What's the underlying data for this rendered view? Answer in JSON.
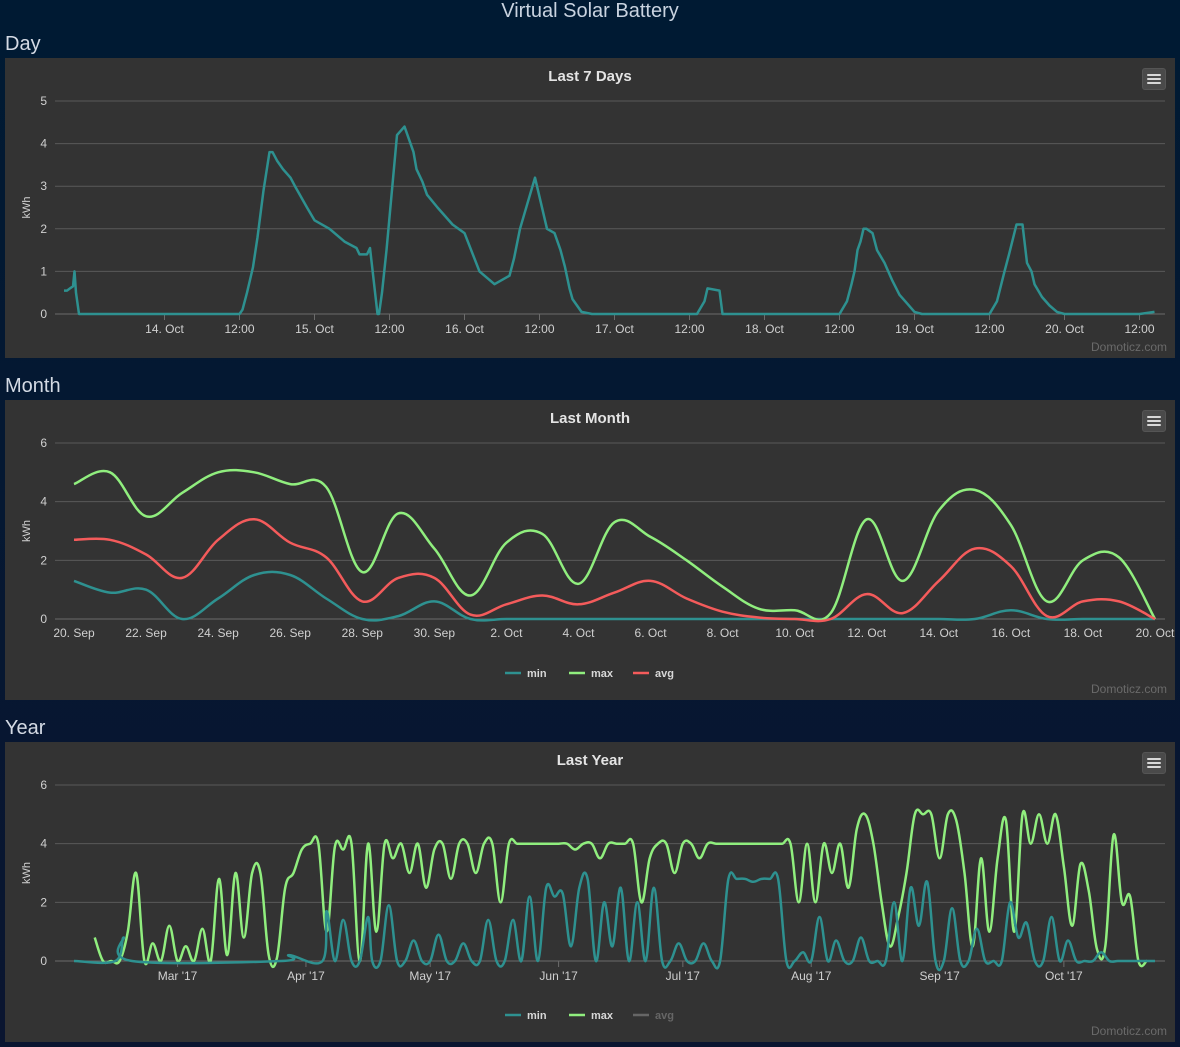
{
  "page_title": "Virtual Solar Battery",
  "sections": {
    "day": "Day",
    "month": "Month",
    "year": "Year"
  },
  "credits": "Domoticz.com",
  "colors": {
    "min": "#2e9190",
    "max": "#90ee7e",
    "avg": "#f45b5b",
    "avg_inactive": "#666666"
  },
  "icons": {
    "menu": "hamburger-menu-icon"
  },
  "chart_data": [
    {
      "type": "line",
      "title": "Last 7 Days",
      "ylabel": "kWh",
      "ylim": [
        0,
        5
      ],
      "yticks": [
        0,
        1,
        2,
        3,
        4,
        5
      ],
      "xlim_days": [
        13.27,
        20.67
      ],
      "xticks": [
        {
          "x": 14.0,
          "label": "14. Oct"
        },
        {
          "x": 14.5,
          "label": "12:00"
        },
        {
          "x": 15.0,
          "label": "15. Oct"
        },
        {
          "x": 15.5,
          "label": "12:00"
        },
        {
          "x": 16.0,
          "label": "16. Oct"
        },
        {
          "x": 16.5,
          "label": "12:00"
        },
        {
          "x": 17.0,
          "label": "17. Oct"
        },
        {
          "x": 17.5,
          "label": "12:00"
        },
        {
          "x": 18.0,
          "label": "18. Oct"
        },
        {
          "x": 18.5,
          "label": "12:00"
        },
        {
          "x": 19.0,
          "label": "19. Oct"
        },
        {
          "x": 19.5,
          "label": "12:00"
        },
        {
          "x": 20.0,
          "label": "20. Oct"
        },
        {
          "x": 20.5,
          "label": "12:00"
        }
      ],
      "grid": true,
      "legend": "none",
      "series": [
        {
          "key": "min",
          "x": [
            13.33,
            13.35,
            13.37,
            13.39,
            13.4,
            13.41,
            13.43,
            14.0,
            14.5,
            14.52,
            14.55,
            14.59,
            14.62,
            14.66,
            14.7,
            14.72,
            14.75,
            14.79,
            14.84,
            14.87,
            14.95,
            15.0,
            15.1,
            15.2,
            15.28,
            15.3,
            15.35,
            15.37,
            15.42,
            15.43,
            15.45,
            15.48,
            15.55,
            15.6,
            15.63,
            15.66,
            15.68,
            15.72,
            15.75,
            15.82,
            15.87,
            15.92,
            16.0,
            16.1,
            16.2,
            16.3,
            16.33,
            16.37,
            16.42,
            16.47,
            16.55,
            16.6,
            16.64,
            16.67,
            16.7,
            16.72,
            16.75,
            16.78,
            16.85,
            16.92,
            17.0,
            17.5,
            17.55,
            17.6,
            17.62,
            17.7,
            17.72,
            18.0,
            18.5,
            18.55,
            18.58,
            18.6,
            18.62,
            18.64,
            18.66,
            18.68,
            18.72,
            18.75,
            18.8,
            18.85,
            18.9,
            18.95,
            19.0,
            19.05,
            19.1,
            19.5,
            19.55,
            19.6,
            19.63,
            19.68,
            19.72,
            19.75,
            19.78,
            19.8,
            19.85,
            19.9,
            19.95,
            20.0,
            20.5,
            20.6
          ],
          "y": [
            0.55,
            0.55,
            0.6,
            0.65,
            1.0,
            0.5,
            0.0,
            0.0,
            0.0,
            0.1,
            0.5,
            1.1,
            1.8,
            2.9,
            3.8,
            3.8,
            3.6,
            3.4,
            3.2,
            3.0,
            2.5,
            2.2,
            2.0,
            1.7,
            1.55,
            1.4,
            1.4,
            1.55,
            0.0,
            0.0,
            0.5,
            1.5,
            4.2,
            4.4,
            4.1,
            3.8,
            3.4,
            3.1,
            2.8,
            2.5,
            2.3,
            2.1,
            1.9,
            1.0,
            0.7,
            0.9,
            1.3,
            2.0,
            2.6,
            3.2,
            2.0,
            1.9,
            1.5,
            1.1,
            0.6,
            0.35,
            0.2,
            0.05,
            0.0,
            0.0,
            0.0,
            0.0,
            0.0,
            0.3,
            0.6,
            0.55,
            0.0,
            0.0,
            0.0,
            0.3,
            0.7,
            1.0,
            1.5,
            1.7,
            2.0,
            2.0,
            1.9,
            1.5,
            1.2,
            0.8,
            0.45,
            0.25,
            0.05,
            0.0,
            0.0,
            0.0,
            0.3,
            1.0,
            1.4,
            2.1,
            2.1,
            1.2,
            1.0,
            0.7,
            0.4,
            0.2,
            0.05,
            0.0,
            0.0,
            0.05
          ]
        }
      ]
    },
    {
      "type": "line",
      "title": "Last Month",
      "ylabel": "kWh",
      "ylim": [
        0,
        6
      ],
      "yticks": [
        0,
        2,
        4,
        6
      ],
      "categories": [
        "20. Sep",
        "21. Sep",
        "22. Sep",
        "23. Sep",
        "24. Sep",
        "25. Sep",
        "26. Sep",
        "27. Sep",
        "28. Sep",
        "29. Sep",
        "30. Sep",
        "1. Oct",
        "2. Oct",
        "3. Oct",
        "4. Oct",
        "5. Oct",
        "6. Oct",
        "7. Oct",
        "8. Oct",
        "9. Oct",
        "10. Oct",
        "11. Oct",
        "12. Oct",
        "13. Oct",
        "14. Oct",
        "15. Oct",
        "16. Oct",
        "17. Oct",
        "18. Oct",
        "19. Oct",
        "20. Oct"
      ],
      "xtick_labels": [
        "20. Sep",
        "22. Sep",
        "24. Sep",
        "26. Sep",
        "28. Sep",
        "30. Sep",
        "2. Oct",
        "4. Oct",
        "6. Oct",
        "8. Oct",
        "10. Oct",
        "12. Oct",
        "14. Oct",
        "16. Oct",
        "18. Oct",
        "20. Oct"
      ],
      "grid": true,
      "legend": "bottom-center",
      "series": [
        {
          "key": "min",
          "name": "min",
          "values": [
            1.3,
            0.9,
            1.0,
            0.0,
            0.7,
            1.5,
            1.5,
            0.7,
            0.0,
            0.1,
            0.6,
            0.0,
            0.0,
            0.0,
            0.0,
            0.0,
            0.0,
            0.0,
            0.0,
            0.0,
            0.0,
            0.0,
            0.0,
            0.0,
            0.0,
            0.0,
            0.3,
            0.0,
            0.0,
            0.0,
            0.0
          ]
        },
        {
          "key": "max",
          "name": "max",
          "values": [
            4.6,
            5.0,
            3.5,
            4.3,
            5.0,
            5.0,
            4.6,
            4.5,
            1.6,
            3.6,
            2.4,
            0.8,
            2.6,
            2.9,
            1.2,
            3.3,
            2.8,
            2.0,
            1.1,
            0.35,
            0.3,
            0.2,
            3.4,
            1.3,
            3.7,
            4.4,
            3.2,
            0.6,
            2.0,
            2.1,
            0.0
          ]
        },
        {
          "key": "avg",
          "name": "avg",
          "values": [
            2.7,
            2.7,
            2.2,
            1.4,
            2.7,
            3.4,
            2.6,
            2.1,
            0.6,
            1.4,
            1.4,
            0.15,
            0.5,
            0.8,
            0.5,
            0.9,
            1.3,
            0.7,
            0.25,
            0.05,
            0.0,
            0.0,
            0.85,
            0.2,
            1.3,
            2.4,
            1.8,
            0.1,
            0.6,
            0.6,
            0.0
          ]
        }
      ]
    },
    {
      "type": "line",
      "title": "Last Year",
      "ylabel": "kWh",
      "ylim": [
        0,
        6
      ],
      "yticks": [
        0,
        2,
        4,
        6
      ],
      "xlim_days": [
        0,
        261
      ],
      "xticks": [
        {
          "x": 25,
          "label": "Mar '17"
        },
        {
          "x": 56,
          "label": "Apr '17"
        },
        {
          "x": 86,
          "label": "May '17"
        },
        {
          "x": 117,
          "label": "Jun '17"
        },
        {
          "x": 147,
          "label": "Jul '17"
        },
        {
          "x": 178,
          "label": "Aug '17"
        },
        {
          "x": 209,
          "label": "Sep '17"
        },
        {
          "x": 239,
          "label": "Oct '17"
        }
      ],
      "grid": true,
      "legend": "bottom-center",
      "series": [
        {
          "key": "max",
          "name": "max",
          "x": [
            5,
            7,
            9,
            11,
            13,
            15,
            17,
            19,
            21,
            23,
            25,
            27,
            29,
            31,
            33,
            35,
            37,
            39,
            41,
            43,
            45,
            47,
            49,
            51,
            53,
            55,
            57,
            59,
            61,
            63,
            65,
            67,
            69,
            71,
            73,
            75,
            77,
            79,
            81,
            83,
            85,
            87,
            89,
            91,
            93,
            95,
            97,
            99,
            101,
            103,
            105,
            107,
            109,
            111,
            113,
            115,
            117,
            119,
            121,
            123,
            125,
            127,
            129,
            131,
            133,
            135,
            137,
            139,
            141,
            143,
            145,
            147,
            149,
            151,
            153,
            155,
            157,
            159,
            161,
            163,
            165,
            167,
            169,
            171,
            173,
            175,
            177,
            179,
            181,
            183,
            185,
            187,
            189,
            191,
            193,
            195,
            197,
            199,
            201,
            203,
            205,
            207,
            209,
            211,
            213,
            215,
            217,
            219,
            221,
            223,
            225,
            227,
            229,
            231,
            233,
            235,
            237,
            239,
            241,
            243,
            245,
            247,
            249,
            251,
            253,
            255,
            257,
            259
          ],
          "y": [
            0.8,
            0.0,
            0.0,
            0.0,
            1.0,
            3.0,
            0.0,
            0.6,
            0.0,
            1.2,
            0.0,
            0.5,
            0.0,
            1.1,
            0.0,
            2.8,
            0.2,
            3.0,
            0.8,
            3.0,
            3.0,
            0.2,
            0.1,
            2.5,
            3.0,
            3.8,
            4.0,
            4.0,
            1.0,
            3.9,
            3.8,
            4.0,
            0.0,
            4.0,
            1.0,
            4.0,
            3.5,
            4.0,
            3.0,
            4.0,
            2.5,
            3.8,
            4.0,
            2.8,
            4.0,
            4.0,
            3.0,
            4.0,
            4.0,
            2.0,
            4.0,
            4.0,
            4.0,
            4.0,
            4.0,
            4.0,
            4.0,
            4.0,
            3.8,
            4.0,
            4.0,
            3.5,
            4.0,
            4.0,
            4.0,
            4.0,
            2.0,
            3.5,
            4.0,
            4.0,
            3.0,
            4.0,
            4.0,
            3.5,
            4.0,
            4.0,
            4.0,
            4.0,
            4.0,
            4.0,
            4.0,
            4.0,
            4.0,
            4.0,
            4.0,
            2.0,
            4.0,
            2.0,
            4.0,
            3.0,
            4.0,
            2.5,
            4.5,
            5.0,
            4.0,
            2.0,
            0.5,
            1.5,
            3.0,
            5.0,
            5.0,
            5.0,
            3.5,
            5.0,
            4.8,
            3.0,
            0.5,
            3.5,
            1.0,
            3.5,
            4.8,
            1.0,
            5.0,
            4.0,
            5.0,
            4.0,
            5.0,
            3.2,
            1.2,
            3.3,
            2.4,
            0.4,
            0.5,
            4.3,
            2.0,
            2.2,
            0.0,
            0.0
          ]
        },
        {
          "key": "min",
          "name": "min",
          "x": [
            0,
            10,
            12,
            14,
            50,
            52,
            60,
            61,
            63,
            65,
            67,
            69,
            71,
            72,
            74,
            76,
            78,
            80,
            82,
            84,
            86,
            88,
            90,
            92,
            94,
            96,
            98,
            100,
            102,
            104,
            106,
            108,
            110,
            112,
            114,
            116,
            118,
            120,
            122,
            124,
            126,
            128,
            130,
            132,
            134,
            136,
            138,
            140,
            142,
            144,
            146,
            148,
            150,
            152,
            154,
            156,
            158,
            160,
            162,
            164,
            166,
            168,
            170,
            172,
            174,
            176,
            178,
            180,
            182,
            184,
            186,
            188,
            190,
            192,
            194,
            196,
            198,
            200,
            202,
            204,
            206,
            208,
            210,
            212,
            214,
            216,
            218,
            220,
            222,
            224,
            226,
            228,
            230,
            232,
            234,
            236,
            238,
            240,
            242,
            244,
            246,
            248,
            250,
            252,
            254,
            256,
            258,
            261
          ],
          "y": [
            0.0,
            0.0,
            0.8,
            0.0,
            0.0,
            0.2,
            0.0,
            1.7,
            0.0,
            1.4,
            0.0,
            0.0,
            1.5,
            0.0,
            0.0,
            1.9,
            0.0,
            0.0,
            0.7,
            0.0,
            0.0,
            0.9,
            0.0,
            0.0,
            0.6,
            0.0,
            0.0,
            1.4,
            0.0,
            0.0,
            1.4,
            0.0,
            2.2,
            0.0,
            2.5,
            2.2,
            2.3,
            0.5,
            2.5,
            2.8,
            0.0,
            2.0,
            0.5,
            2.5,
            0.0,
            2.0,
            0.0,
            2.5,
            0.0,
            0.0,
            0.6,
            0.0,
            0.0,
            0.6,
            0.0,
            0.0,
            2.8,
            2.8,
            2.8,
            2.7,
            2.8,
            2.8,
            2.8,
            0.0,
            0.0,
            0.3,
            0.0,
            1.5,
            0.0,
            0.7,
            0.0,
            0.0,
            0.8,
            0.0,
            0.0,
            0.0,
            2.0,
            0.0,
            2.5,
            1.2,
            2.7,
            0.0,
            0.0,
            1.8,
            0.0,
            0.0,
            1.1,
            0.0,
            0.0,
            0.0,
            2.0,
            0.8,
            1.3,
            0.0,
            0.0,
            1.5,
            0.0,
            0.7,
            0.0,
            0.0,
            0.0,
            0.3,
            0.0,
            0.0,
            0.0,
            0.0,
            0.0,
            0.0
          ]
        }
      ],
      "legend_items": [
        {
          "key": "min",
          "name": "min",
          "active": true
        },
        {
          "key": "max",
          "name": "max",
          "active": true
        },
        {
          "key": "avg",
          "name": "avg",
          "active": false
        }
      ]
    }
  ]
}
